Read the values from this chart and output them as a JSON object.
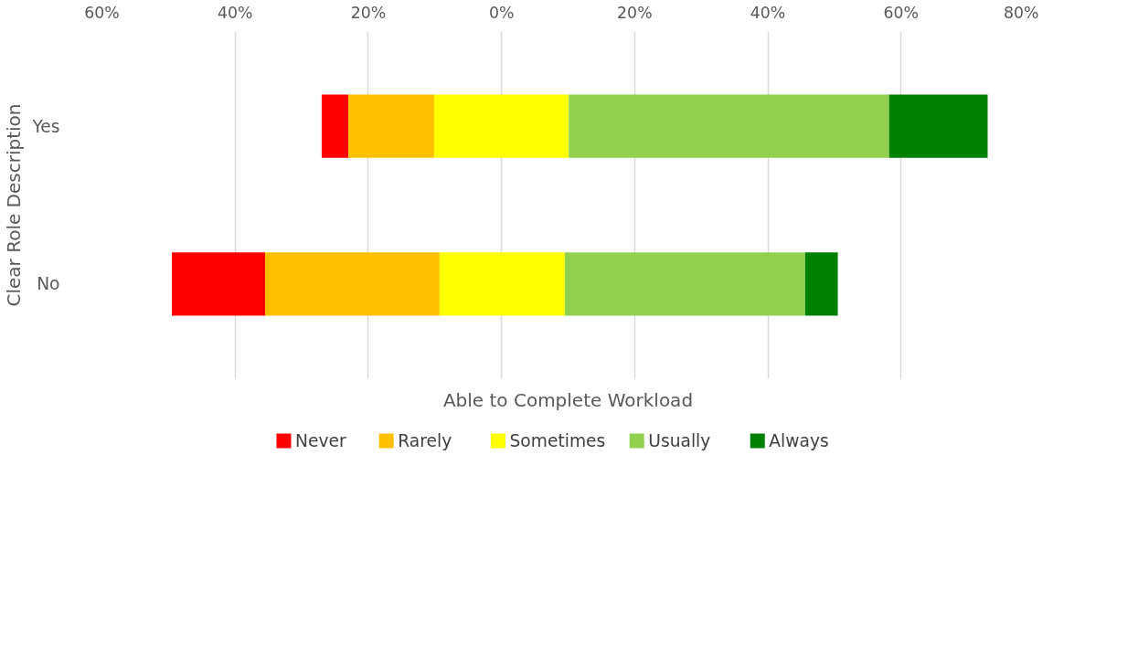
{
  "chart_data": {
    "type": "bar",
    "orientation": "horizontal",
    "ylabel": "Clear Role Description",
    "xlabel": "Able to Complete Workload",
    "categories": [
      "Yes",
      "No"
    ],
    "series": [
      {
        "name": "Never",
        "color": "#ff0000",
        "base": [
          -27.0,
          -49.5
        ],
        "values": [
          4.0,
          14.0
        ]
      },
      {
        "name": "Rarely",
        "color": "#ffc000",
        "base": [
          -23.0,
          -35.5
        ],
        "values": [
          12.9,
          26.2
        ]
      },
      {
        "name": "Sometimes",
        "color": "#ffff00",
        "base": [
          -10.1,
          -9.3
        ],
        "values": [
          20.2,
          18.8
        ]
      },
      {
        "name": "Usually",
        "color": "#92d050",
        "base": [
          10.1,
          9.5
        ],
        "values": [
          48.1,
          36.1
        ]
      },
      {
        "name": "Always",
        "color": "#008000",
        "base": [
          58.2,
          45.6
        ],
        "values": [
          14.8,
          4.9
        ]
      }
    ],
    "xlim": [
      -60,
      80
    ],
    "xticks": [
      {
        "value": -60,
        "label": "60%"
      },
      {
        "value": -40,
        "label": "40%"
      },
      {
        "value": -20,
        "label": "20%"
      },
      {
        "value": 0,
        "label": "0%"
      },
      {
        "value": 20,
        "label": "20%"
      },
      {
        "value": 40,
        "label": "40%"
      },
      {
        "value": 60,
        "label": "60%"
      },
      {
        "value": 80,
        "label": "80%"
      }
    ],
    "grid": "x",
    "legend": "bottom"
  }
}
